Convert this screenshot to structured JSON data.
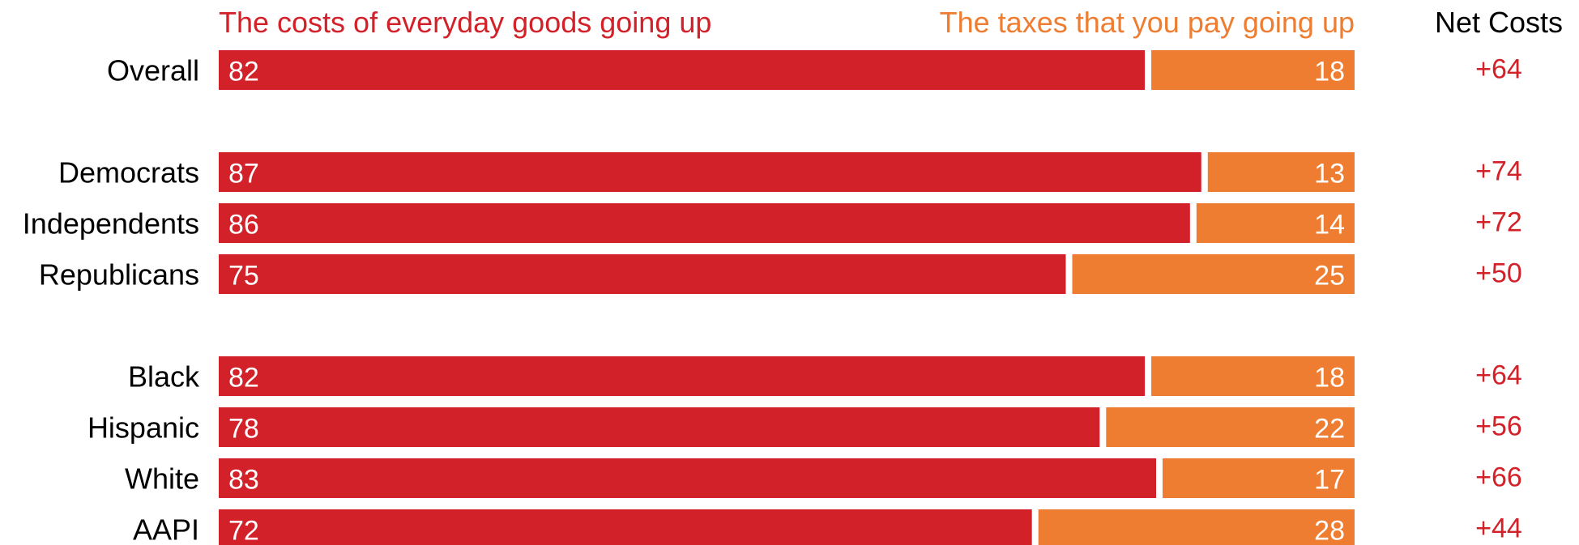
{
  "chart_data": {
    "type": "bar",
    "stacked": true,
    "orientation": "horizontal",
    "legend_position": "top",
    "series": [
      {
        "name": "The costs of everyday goods going up",
        "color": "#d32129",
        "values": [
          82,
          87,
          86,
          75,
          82,
          78,
          83,
          72
        ]
      },
      {
        "name": "The taxes that you pay going up",
        "color": "#ee7d31",
        "values": [
          18,
          13,
          14,
          25,
          18,
          22,
          17,
          28
        ]
      }
    ],
    "categories": [
      "Overall",
      "Democrats",
      "Independents",
      "Republicans",
      "Black",
      "Hispanic",
      "White",
      "AAPI"
    ],
    "groups": [
      [
        0
      ],
      [
        1,
        2,
        3
      ],
      [
        4,
        5,
        6,
        7
      ]
    ],
    "net_header": "Net Costs",
    "net_values": [
      "+64",
      "+74",
      "+72",
      "+50",
      "+64",
      "+56",
      "+66",
      "+44"
    ],
    "net_color": "#d32129",
    "xlim": [
      0,
      100
    ]
  }
}
